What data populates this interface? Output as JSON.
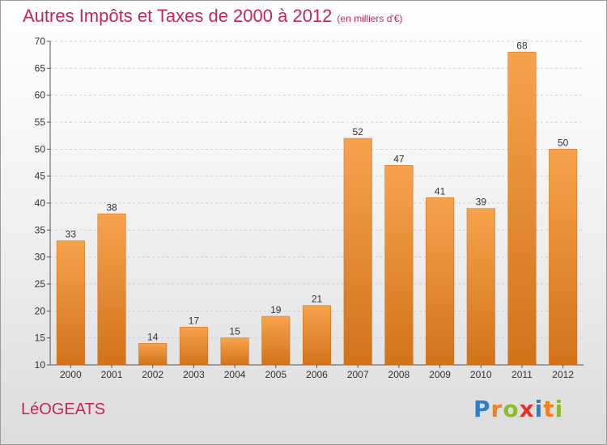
{
  "chart_data": {
    "type": "bar",
    "title": "Autres Impôts et Taxes de 2000 à 2012",
    "subtitle": "(en milliers d'€)",
    "categories": [
      "2000",
      "2001",
      "2002",
      "2003",
      "2004",
      "2005",
      "2006",
      "2007",
      "2008",
      "2009",
      "2010",
      "2011",
      "2012"
    ],
    "values": [
      33,
      38,
      14,
      17,
      15,
      19,
      21,
      52,
      47,
      41,
      39,
      68,
      50
    ],
    "yticks": [
      10,
      15,
      20,
      25,
      30,
      35,
      40,
      45,
      50,
      55,
      60,
      65,
      70
    ],
    "ylim": [
      10,
      70
    ],
    "xlabel": "",
    "ylabel": "",
    "grid": true,
    "bar_color_top": "#f7a34c",
    "bar_color_bottom": "#d2731a",
    "title_color": "#c8245c"
  },
  "commune": "LéOGEATS",
  "logo": {
    "letters": [
      "P",
      "r",
      "o",
      "x",
      "i",
      "t",
      "i"
    ],
    "colors": [
      "#2e7fc4",
      "#f0831e",
      "#8dbb2b",
      "#e5332a",
      "#2e7fc4",
      "#f0831e",
      "#8dbb2b"
    ]
  }
}
